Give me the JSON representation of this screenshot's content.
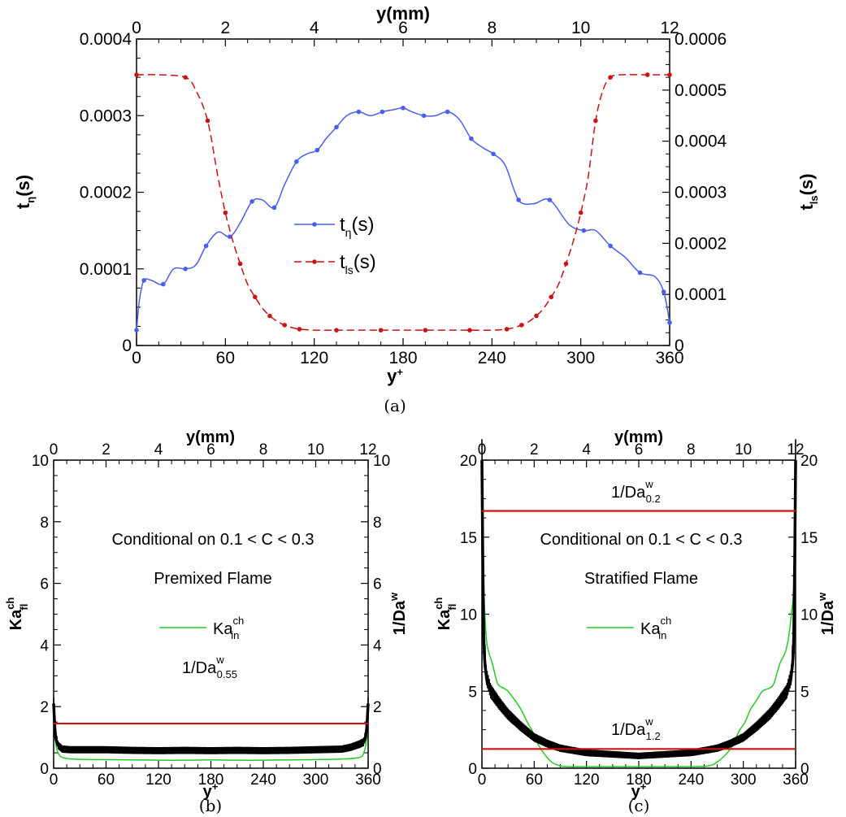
{
  "colors": {
    "blue": "#4a5df0",
    "red": "#cc1111",
    "green": "#22cc22",
    "black": "#000000"
  },
  "chart_data": [
    {
      "id": "a",
      "type": "line",
      "caption": "(a)",
      "xlabel": "y",
      "xlabel_sup": "+",
      "x2label": "y(mm)",
      "ylabel": "t",
      "ylabel_sub": "η",
      "ylabel_unit": "(s)",
      "y2label": "t",
      "y2label_sub": "ls",
      "y2label_unit": "(s)",
      "xlim": [
        0,
        360
      ],
      "xticks": [
        "0",
        "60",
        "120",
        "180",
        "240",
        "300",
        "360"
      ],
      "x2lim": [
        0,
        12
      ],
      "x2ticks": [
        "0",
        "2",
        "4",
        "6",
        "8",
        "10",
        "12"
      ],
      "ylim": [
        0,
        0.0004
      ],
      "yticks": [
        "0",
        "0.0001",
        "0.0002",
        "0.0003",
        "0.0004"
      ],
      "y2lim": [
        0,
        0.0006
      ],
      "y2ticks": [
        "0",
        "0.0001",
        "0.0002",
        "0.0003",
        "0.0004",
        "0.0005",
        "0.0006"
      ],
      "series": [
        {
          "name": "t",
          "name_sub": "η",
          "name_unit": "(s)",
          "axis": "left",
          "color": "#4a5df0",
          "dash": "solid",
          "x": [
            0,
            2,
            5,
            10,
            18,
            25,
            33,
            40,
            47,
            55,
            63,
            70,
            78,
            85,
            93,
            100,
            108,
            115,
            122,
            128,
            135,
            142,
            150,
            158,
            166,
            174,
            180,
            186,
            194,
            202,
            210,
            218,
            226,
            234,
            241,
            249,
            258,
            268,
            279,
            292,
            302,
            310,
            320,
            330,
            340,
            350,
            356,
            360
          ],
          "y": [
            2e-05,
            6e-05,
            8.5e-05,
            8.5e-05,
            8e-05,
            0.0001,
            0.0001,
            0.000105,
            0.00013,
            0.000148,
            0.000142,
            0.00016,
            0.000188,
            0.00019,
            0.00018,
            0.00021,
            0.00024,
            0.00025,
            0.000255,
            0.00027,
            0.000285,
            0.0003,
            0.000305,
            0.0003,
            0.000305,
            0.000308,
            0.00031,
            0.000305,
            0.0003,
            0.0003,
            0.000305,
            0.000295,
            0.00027,
            0.000258,
            0.00025,
            0.000235,
            0.00019,
            0.000185,
            0.00019,
            0.000158,
            0.00015,
            0.00015,
            0.00013,
            0.000115,
            9.5e-05,
            9e-05,
            7e-05,
            3e-05
          ]
        },
        {
          "name": "t",
          "name_sub": "ls",
          "name_unit": "(s)",
          "axis": "right",
          "color": "#cc1111",
          "dash": "dashed",
          "x": [
            0,
            15,
            33,
            40,
            48,
            55,
            60,
            65,
            70,
            75,
            80,
            85,
            90,
            95,
            100,
            105,
            110,
            120,
            135,
            150,
            165,
            180,
            195,
            210,
            225,
            240,
            250,
            255,
            260,
            265,
            270,
            275,
            280,
            285,
            290,
            295,
            300,
            305,
            310,
            315,
            320,
            327,
            345,
            360
          ],
          "y": [
            0.00053,
            0.00053,
            0.000525,
            0.0005,
            0.00044,
            0.00033,
            0.00026,
            0.000205,
            0.00016,
            0.00012,
            9.5e-05,
            7.3e-05,
            5.8e-05,
            4.7e-05,
            4e-05,
            3.5e-05,
            3.2e-05,
            3e-05,
            3e-05,
            3e-05,
            3e-05,
            3e-05,
            3e-05,
            3e-05,
            3e-05,
            3e-05,
            3.2e-05,
            3.5e-05,
            4e-05,
            4.7e-05,
            5.8e-05,
            7.3e-05,
            9.5e-05,
            0.00012,
            0.00016,
            0.000205,
            0.00026,
            0.00033,
            0.00044,
            0.0005,
            0.000525,
            0.00053,
            0.00053,
            0.00053
          ]
        }
      ]
    },
    {
      "id": "b",
      "type": "line",
      "caption": "(b)",
      "xlabel": "y",
      "xlabel_sup": "+",
      "x2label": "y(mm)",
      "ylabel": "Ka",
      "ylabel_sup": "ch",
      "ylabel_sub": "fl",
      "y2label": "1/Da",
      "y2label_sup": "w",
      "xlim": [
        0,
        360
      ],
      "xticks": [
        "0",
        "60",
        "120",
        "180",
        "240",
        "300",
        "360"
      ],
      "x2lim": [
        0,
        12
      ],
      "x2ticks": [
        "0",
        "2",
        "4",
        "6",
        "8",
        "10",
        "12"
      ],
      "ylim": [
        0,
        10
      ],
      "yticks": [
        "0",
        "2",
        "4",
        "6",
        "8",
        "10"
      ],
      "y2ticks": [
        "0",
        "2",
        "4",
        "6",
        "8",
        "10"
      ],
      "annotations": [
        "Conditional on 0.1 < C < 0.3",
        "Premixed Flame"
      ],
      "line_label": {
        "text": "1/Da",
        "sup": "w",
        "sub": "0.55"
      },
      "series": [
        {
          "name": "Ka",
          "name_sup": "ch",
          "name_sub": "in",
          "color": "#22cc22",
          "x": [
            0,
            2,
            5,
            10,
            20,
            40,
            60,
            90,
            120,
            150,
            180,
            210,
            240,
            270,
            300,
            330,
            350,
            355,
            358,
            360
          ],
          "y": [
            1.9,
            0.9,
            0.5,
            0.35,
            0.3,
            0.28,
            0.28,
            0.27,
            0.26,
            0.26,
            0.27,
            0.26,
            0.26,
            0.27,
            0.28,
            0.3,
            0.35,
            0.5,
            0.9,
            1.9
          ]
        },
        {
          "name": "Ka_fl",
          "color": "#000000",
          "band": true,
          "x": [
            0,
            2,
            5,
            10,
            20,
            40,
            60,
            90,
            120,
            150,
            180,
            210,
            240,
            270,
            300,
            330,
            340,
            350,
            355,
            358,
            360
          ],
          "y": [
            2.1,
            1.1,
            0.75,
            0.62,
            0.6,
            0.6,
            0.6,
            0.58,
            0.57,
            0.58,
            0.57,
            0.58,
            0.57,
            0.58,
            0.6,
            0.62,
            0.68,
            0.78,
            0.85,
            1.2,
            2.1
          ]
        },
        {
          "name": "1/Da_0.55",
          "color": "#cc1111",
          "hline": 1.45
        }
      ]
    },
    {
      "id": "c",
      "type": "line",
      "caption": "(c)",
      "xlabel": "y",
      "xlabel_sup": "+",
      "x2label": "y(mm)",
      "ylabel": "Ka",
      "ylabel_sup": "ch",
      "ylabel_sub": "fl",
      "y2label": "1/Da",
      "y2label_sup": "w",
      "xlim": [
        0,
        360
      ],
      "xticks": [
        "0",
        "60",
        "120",
        "180",
        "240",
        "300",
        "360"
      ],
      "x2lim": [
        0,
        12
      ],
      "x2ticks": [
        "0",
        "2",
        "4",
        "6",
        "8",
        "10",
        "12"
      ],
      "ylim": [
        0,
        20
      ],
      "yticks": [
        "0",
        "5",
        "10",
        "15",
        "20"
      ],
      "y2ticks": [
        "0",
        "5",
        "10",
        "15",
        "20"
      ],
      "annotations": [
        "Conditional on 0.1 < C < 0.3",
        "Stratified Flame"
      ],
      "line_label_top": {
        "text": "1/Da",
        "sup": "w",
        "sub": "0.2"
      },
      "line_label_bottom": {
        "text": "1/Da",
        "sup": "w",
        "sub": "1.2"
      },
      "series": [
        {
          "name": "Ka",
          "name_sup": "ch",
          "name_sub": "in",
          "color": "#22cc22",
          "x": [
            0,
            2,
            5,
            8,
            12,
            18,
            25,
            30,
            38,
            45,
            52,
            58,
            65,
            72,
            80,
            90,
            100,
            120,
            150,
            180,
            210,
            240,
            260,
            270,
            280,
            288,
            295,
            302,
            308,
            315,
            322,
            330,
            335,
            342,
            348,
            352,
            355,
            358,
            360
          ],
          "y": [
            19,
            12,
            8.5,
            7.5,
            6.8,
            5.5,
            5.2,
            5.0,
            4.4,
            3.8,
            3.0,
            2.4,
            1.5,
            0.9,
            0.4,
            0.15,
            0.1,
            0.1,
            0.1,
            0.1,
            0.1,
            0.1,
            0.15,
            0.4,
            0.9,
            1.5,
            2.4,
            3.0,
            3.8,
            4.4,
            5.0,
            5.2,
            5.5,
            6.8,
            7.5,
            8.5,
            10,
            12,
            19
          ]
        },
        {
          "name": "Ka_fl",
          "color": "#000000",
          "band": true,
          "x": [
            0,
            2,
            5,
            10,
            20,
            30,
            45,
            60,
            75,
            90,
            105,
            120,
            150,
            180,
            210,
            240,
            255,
            270,
            285,
            300,
            315,
            330,
            340,
            350,
            355,
            358,
            360
          ],
          "y": [
            20,
            9,
            6,
            5,
            4.2,
            3.5,
            2.7,
            2.0,
            1.6,
            1.3,
            1.15,
            1.0,
            0.9,
            0.8,
            0.9,
            1.0,
            1.15,
            1.3,
            1.6,
            2.0,
            2.7,
            3.5,
            4.2,
            5,
            6,
            9,
            20
          ]
        },
        {
          "name": "1/Da_0.2",
          "color": "#cc1111",
          "hline": 16.7
        },
        {
          "name": "1/Da_1.2",
          "color": "#cc1111",
          "hline": 1.25
        }
      ]
    }
  ]
}
